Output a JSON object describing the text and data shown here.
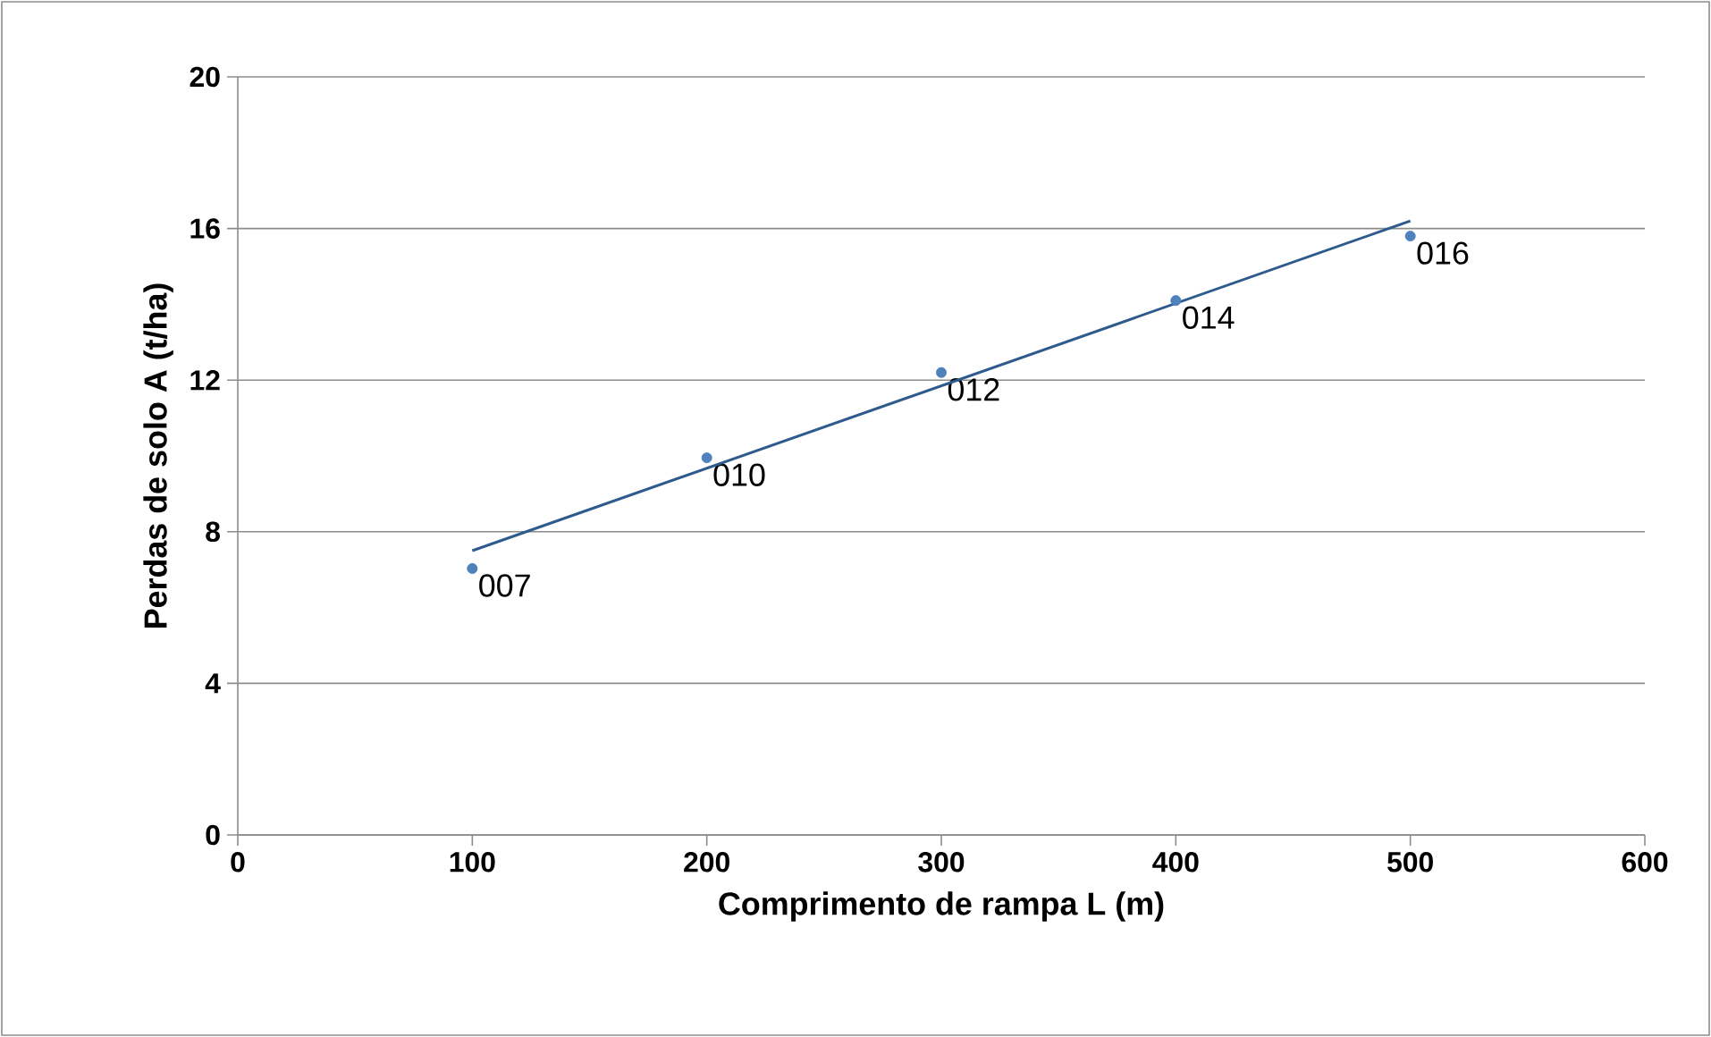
{
  "chart_data": {
    "type": "scatter",
    "xlabel": "Comprimento de rampa L (m)",
    "ylabel": "Perdas de solo A (t/ha)",
    "xlim": [
      0,
      600
    ],
    "xticks": [
      0,
      100,
      200,
      300,
      400,
      500,
      600
    ],
    "ylim": [
      0,
      20
    ],
    "yticks": [
      0,
      4,
      8,
      12,
      16,
      20
    ],
    "grid": "y",
    "series": [
      {
        "color": "#4f81bd",
        "marker": "circle",
        "x": [
          100,
          200,
          300,
          400,
          500
        ],
        "values": [
          7.03,
          9.95,
          12.2,
          14.1,
          15.8
        ],
        "value_labels": [
          "007",
          "010",
          "012",
          "014",
          "016"
        ]
      },
      {
        "type": "line",
        "color": "#2e5a8c",
        "x": [
          100,
          500
        ],
        "values": [
          7.5,
          16.2
        ],
        "marker": "none"
      }
    ]
  }
}
